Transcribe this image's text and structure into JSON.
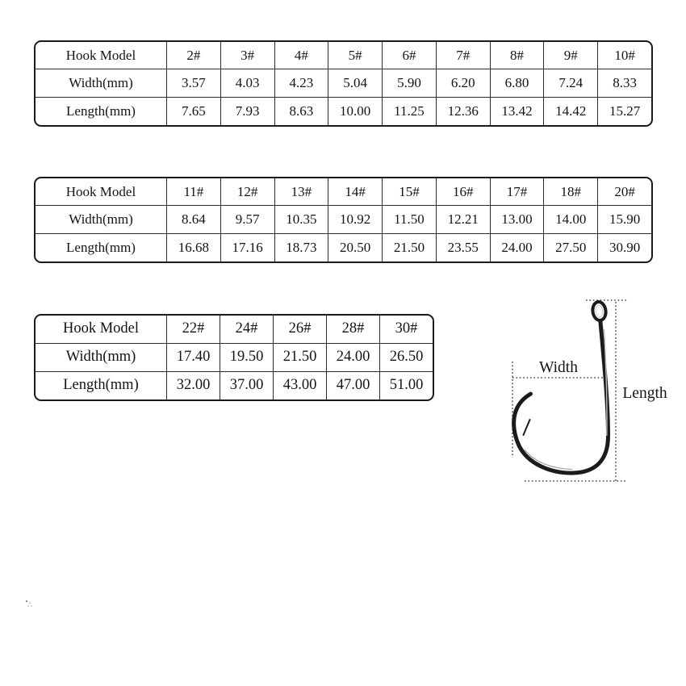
{
  "colors": {
    "table_border": "#1a1a1a",
    "inner_line": "#2b2b2b",
    "text": "#141414",
    "hook": "#1b1b1b",
    "background": "#ffffff"
  },
  "tables": [
    {
      "header_label": "Hook Model",
      "row_labels": [
        "Width(mm)",
        "Length(mm)"
      ],
      "models": [
        "2#",
        "3#",
        "4#",
        "5#",
        "6#",
        "7#",
        "8#",
        "9#",
        "10#"
      ],
      "width_mm": [
        "3.57",
        "4.03",
        "4.23",
        "5.04",
        "5.90",
        "6.20",
        "6.80",
        "7.24",
        "8.33"
      ],
      "length_mm": [
        "7.65",
        "7.93",
        "8.63",
        "10.00",
        "11.25",
        "12.36",
        "13.42",
        "14.42",
        "15.27"
      ]
    },
    {
      "header_label": "Hook Model",
      "row_labels": [
        "Width(mm)",
        "Length(mm)"
      ],
      "models": [
        "11#",
        "12#",
        "13#",
        "14#",
        "15#",
        "16#",
        "17#",
        "18#",
        "20#"
      ],
      "width_mm": [
        "8.64",
        "9.57",
        "10.35",
        "10.92",
        "11.50",
        "12.21",
        "13.00",
        "14.00",
        "15.90"
      ],
      "length_mm": [
        "16.68",
        "17.16",
        "18.73",
        "20.50",
        "21.50",
        "23.55",
        "24.00",
        "27.50",
        "30.90"
      ]
    },
    {
      "header_label": "Hook Model",
      "row_labels": [
        "Width(mm)",
        "Length(mm)"
      ],
      "models": [
        "22#",
        "24#",
        "26#",
        "28#",
        "30#"
      ],
      "width_mm": [
        "17.40",
        "19.50",
        "21.50",
        "24.00",
        "26.50"
      ],
      "length_mm": [
        "32.00",
        "37.00",
        "43.00",
        "47.00",
        "51.00"
      ]
    }
  ],
  "diagram": {
    "width_label": "Width",
    "length_label": "Length"
  },
  "chart_data": [
    {
      "type": "table",
      "title": "Hook size specifications (2#-10#)",
      "columns": [
        "Hook Model",
        "2#",
        "3#",
        "4#",
        "5#",
        "6#",
        "7#",
        "8#",
        "9#",
        "10#"
      ],
      "rows": [
        [
          "Width(mm)",
          "3.57",
          "4.03",
          "4.23",
          "5.04",
          "5.90",
          "6.20",
          "6.80",
          "7.24",
          "8.33"
        ],
        [
          "Length(mm)",
          "7.65",
          "7.93",
          "8.63",
          "10.00",
          "11.25",
          "12.36",
          "13.42",
          "14.42",
          "15.27"
        ]
      ]
    },
    {
      "type": "table",
      "title": "Hook size specifications (11#-20#)",
      "columns": [
        "Hook Model",
        "11#",
        "12#",
        "13#",
        "14#",
        "15#",
        "16#",
        "17#",
        "18#",
        "20#"
      ],
      "rows": [
        [
          "Width(mm)",
          "8.64",
          "9.57",
          "10.35",
          "10.92",
          "11.50",
          "12.21",
          "13.00",
          "14.00",
          "15.90"
        ],
        [
          "Length(mm)",
          "16.68",
          "17.16",
          "18.73",
          "20.50",
          "21.50",
          "23.55",
          "24.00",
          "27.50",
          "30.90"
        ]
      ]
    },
    {
      "type": "table",
      "title": "Hook size specifications (22#-30#)",
      "columns": [
        "Hook Model",
        "22#",
        "24#",
        "26#",
        "28#",
        "30#"
      ],
      "rows": [
        [
          "Width(mm)",
          "17.40",
          "19.50",
          "21.50",
          "24.00",
          "26.50"
        ],
        [
          "Length(mm)",
          "32.00",
          "37.00",
          "43.00",
          "47.00",
          "51.00"
        ]
      ]
    }
  ]
}
